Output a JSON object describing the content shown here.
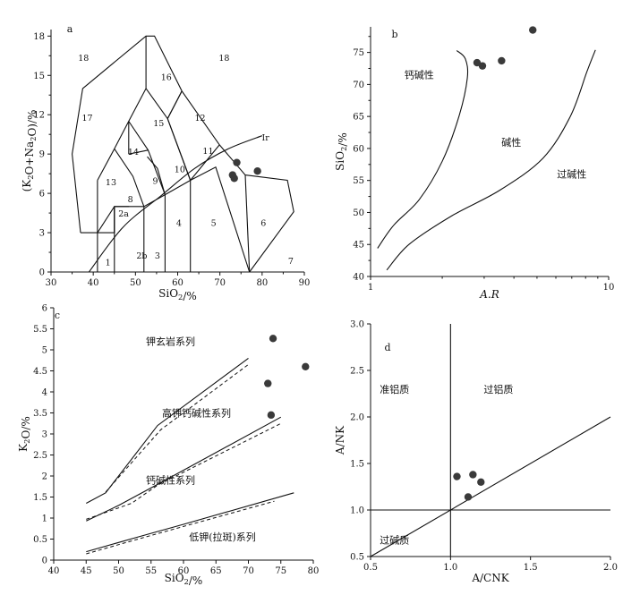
{
  "chart_data": [
    {
      "panel": "a",
      "type": "scatter",
      "xlabel": "SiO2/%",
      "ylabel": "(K2O+Na2O)/%",
      "xlim": [
        30,
        90
      ],
      "ylim": [
        0,
        18.5
      ],
      "xticks": [
        30,
        40,
        50,
        60,
        70,
        80,
        90
      ],
      "yticks": [
        0,
        3,
        6,
        9,
        12,
        15,
        18
      ],
      "field_labels": [
        {
          "text": "1",
          "x": 43.5,
          "y": 0.8
        },
        {
          "text": "2a",
          "x": 47.2,
          "y": 4.5
        },
        {
          "text": "2b",
          "x": 51.5,
          "y": 1.3
        },
        {
          "text": "3",
          "x": 55.2,
          "y": 1.3
        },
        {
          "text": "4",
          "x": 60.3,
          "y": 3.8
        },
        {
          "text": "5",
          "x": 68.5,
          "y": 3.8
        },
        {
          "text": "6",
          "x": 80.3,
          "y": 3.8
        },
        {
          "text": "7",
          "x": 86.8,
          "y": 0.9
        },
        {
          "text": "8",
          "x": 48.8,
          "y": 5.6
        },
        {
          "text": "9",
          "x": 54.7,
          "y": 7.0
        },
        {
          "text": "10",
          "x": 60.5,
          "y": 7.9
        },
        {
          "text": "11",
          "x": 67.2,
          "y": 9.3
        },
        {
          "text": "12",
          "x": 65.3,
          "y": 11.8
        },
        {
          "text": "13",
          "x": 44.2,
          "y": 6.9
        },
        {
          "text": "14",
          "x": 49.5,
          "y": 9.2
        },
        {
          "text": "15",
          "x": 55.5,
          "y": 11.4
        },
        {
          "text": "16",
          "x": 57.3,
          "y": 14.9
        },
        {
          "text": "17",
          "x": 38.6,
          "y": 11.8
        },
        {
          "text": "18",
          "x": 37.7,
          "y": 16.4
        },
        {
          "text": "18",
          "x": 71.0,
          "y": 16.4
        },
        {
          "text": "Ir",
          "x": 80.8,
          "y": 10.3
        }
      ],
      "points": [
        {
          "x": 73.0,
          "y": 7.4
        },
        {
          "x": 73.4,
          "y": 7.15
        },
        {
          "x": 74.0,
          "y": 8.35
        },
        {
          "x": 78.9,
          "y": 7.7
        }
      ]
    },
    {
      "panel": "b",
      "type": "scatter",
      "xlabel": "A.R",
      "ylabel": "SiO2/%",
      "xscale": "log",
      "xlim": [
        1,
        10
      ],
      "ylim": [
        40,
        79
      ],
      "xticks": [
        1,
        10
      ],
      "yticks": [
        40,
        45,
        50,
        55,
        60,
        65,
        70,
        75
      ],
      "field_labels": [
        {
          "text": "钙碱性",
          "x": 1.6,
          "y": 71.5
        },
        {
          "text": "碱性",
          "x": 3.9,
          "y": 61
        },
        {
          "text": "过碱性",
          "x": 7.0,
          "y": 56
        }
      ],
      "points": [
        {
          "x": 2.8,
          "y": 73.4
        },
        {
          "x": 2.95,
          "y": 72.9
        },
        {
          "x": 3.55,
          "y": 73.7
        },
        {
          "x": 4.8,
          "y": 78.5
        }
      ]
    },
    {
      "panel": "c",
      "type": "scatter",
      "xlabel": "SiO2/%",
      "ylabel": "K2O/%",
      "xlim": [
        40,
        80
      ],
      "ylim": [
        0,
        6
      ],
      "xticks": [
        40,
        45,
        50,
        55,
        60,
        65,
        70,
        75,
        80
      ],
      "yticks": [
        0,
        0.5,
        1,
        1.5,
        2,
        2.5,
        3,
        3.5,
        4,
        4.5,
        5,
        5.5,
        6
      ],
      "field_labels": [
        {
          "text": "钾玄岩系列",
          "x": 58,
          "y": 5.2
        },
        {
          "text": "高钾钙碱性系列",
          "x": 62,
          "y": 3.5
        },
        {
          "text": "钙碱性系列",
          "x": 58,
          "y": 1.9
        },
        {
          "text": "低钾(拉斑)系列",
          "x": 66,
          "y": 0.55
        }
      ],
      "points": [
        {
          "x": 73.0,
          "y": 4.2
        },
        {
          "x": 73.8,
          "y": 5.27
        },
        {
          "x": 73.5,
          "y": 3.45
        },
        {
          "x": 78.8,
          "y": 4.6
        }
      ]
    },
    {
      "panel": "d",
      "type": "scatter",
      "xlabel": "A/CNK",
      "ylabel": "A/NK",
      "xlim": [
        0.5,
        2.0
      ],
      "ylim": [
        0.5,
        3.0
      ],
      "xticks": [
        0.5,
        1.0,
        1.5,
        2.0
      ],
      "yticks": [
        0.5,
        1.0,
        1.5,
        2.0,
        2.5,
        3.0
      ],
      "field_labels": [
        {
          "text": "准铝质",
          "x": 0.65,
          "y": 2.3
        },
        {
          "text": "过铝质",
          "x": 1.3,
          "y": 2.3
        },
        {
          "text": "过碱质",
          "x": 0.65,
          "y": 0.68
        }
      ],
      "points": [
        {
          "x": 1.04,
          "y": 1.36
        },
        {
          "x": 1.14,
          "y": 1.38
        },
        {
          "x": 1.19,
          "y": 1.3
        },
        {
          "x": 1.11,
          "y": 1.14
        }
      ]
    }
  ]
}
